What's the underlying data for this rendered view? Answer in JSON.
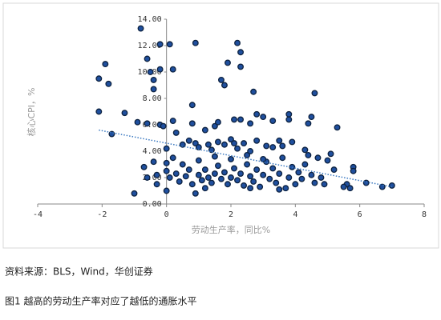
{
  "chart_data": {
    "type": "scatter",
    "y_label": "核心CPI，%",
    "x_label": "劳动生产率，同比%",
    "source": "资料来源：BLS，Wind，华创证券",
    "caption": "图1  越高的劳动生产率对应了越低的通胀水平",
    "color": "#1f4f9e",
    "edge_color": "#0d2240",
    "xlim": [
      -4,
      8
    ],
    "ylim": [
      0,
      14
    ],
    "xticks": [
      -4,
      -2,
      0,
      2,
      4,
      6,
      8
    ],
    "yticks": [
      {
        "value": 0,
        "label": "0.00"
      },
      {
        "value": 2,
        "label": "2.00"
      },
      {
        "value": 4,
        "label": "4.00"
      },
      {
        "value": 6,
        "label": "6.00"
      },
      {
        "value": 8,
        "label": "8.00"
      },
      {
        "value": 10,
        "label": "10.00"
      },
      {
        "value": 12,
        "label": "12.00"
      },
      {
        "value": 14,
        "label": "14.00"
      }
    ],
    "trendline": {
      "color": "#3a78c0",
      "x": [
        -2.1,
        7.0
      ],
      "y": [
        5.6,
        1.3
      ]
    },
    "x": [
      -0.8,
      -0.2,
      0.1,
      0.9,
      2.2,
      2.3,
      1.9,
      2.3,
      -0.6,
      -1.9,
      -0.5,
      -0.2,
      0.2,
      -0.4,
      -2.1,
      -1.8,
      1.7,
      1.8,
      -0.4,
      2.7,
      4.6,
      0.8,
      -2.1,
      -1.3,
      -0.9,
      -0.6,
      -0.2,
      -0.1,
      0.2,
      0.3,
      0.8,
      1.2,
      1.5,
      1.6,
      2.1,
      2.3,
      2.6,
      2.8,
      3.0,
      3.3,
      3.8,
      3.8,
      4.4,
      4.5,
      5.3,
      -1.7,
      0.0,
      0.5,
      0.7,
      0.9,
      1.0,
      1.3,
      1.4,
      1.6,
      1.8,
      2.0,
      2.1,
      2.2,
      2.4,
      2.6,
      2.8,
      3.1,
      3.3,
      3.5,
      3.6,
      3.9,
      4.3,
      4.4,
      4.7,
      5.0,
      5.1,
      5.8,
      5.8,
      5.6,
      5.5,
      5.7,
      6.2,
      6.7,
      7.0,
      -1.0,
      -0.3,
      0.0,
      0.9,
      0.0,
      0.0,
      -0.4,
      -0.7,
      -0.6,
      -0.3,
      0.1,
      0.3,
      0.4,
      0.6,
      0.7,
      0.8,
      1.0,
      1.1,
      1.2,
      1.3,
      1.4,
      1.5,
      1.6,
      1.7,
      1.8,
      1.9,
      2.0,
      2.1,
      2.2,
      2.3,
      2.4,
      2.5,
      2.6,
      2.7,
      2.8,
      2.9,
      3.0,
      3.1,
      3.2,
      3.3,
      3.4,
      3.5,
      3.6,
      3.7,
      3.8,
      3.9,
      4.0,
      4.1,
      4.2,
      4.3,
      4.5,
      4.6,
      4.8,
      1.0,
      1.5,
      2.0,
      2.5,
      3.0,
      0.5,
      0.2,
      4.9,
      5.2,
      1.2,
      2.6,
      3.5
    ],
    "y": [
      13.3,
      12.1,
      12.1,
      12.2,
      12.2,
      11.5,
      10.7,
      10.4,
      11.0,
      10.6,
      10.0,
      10.2,
      10.2,
      9.4,
      9.5,
      9.1,
      9.4,
      9.0,
      8.7,
      8.5,
      8.4,
      7.5,
      7.0,
      6.9,
      6.2,
      6.1,
      6.0,
      5.9,
      6.3,
      5.4,
      6.1,
      5.6,
      5.9,
      6.2,
      6.4,
      6.4,
      6.1,
      6.8,
      6.6,
      6.3,
      6.8,
      6.4,
      6.1,
      6.6,
      5.8,
      5.3,
      4.2,
      4.5,
      4.8,
      4.6,
      4.3,
      4.5,
      4.1,
      4.7,
      4.5,
      4.9,
      4.6,
      4.2,
      4.6,
      4.0,
      4.8,
      4.4,
      4.3,
      4.8,
      4.4,
      4.7,
      4.1,
      3.7,
      3.5,
      3.3,
      3.8,
      2.8,
      2.5,
      1.5,
      1.3,
      1.2,
      1.6,
      1.3,
      1.4,
      0.8,
      1.5,
      1.0,
      0.8,
      2.5,
      3.1,
      3.2,
      2.8,
      2.0,
      2.2,
      2.0,
      2.3,
      1.7,
      2.1,
      2.6,
      1.5,
      2.2,
      1.8,
      2.6,
      2.0,
      1.6,
      2.3,
      2.9,
      1.9,
      2.4,
      1.5,
      2.0,
      2.7,
      1.8,
      2.3,
      1.4,
      3.0,
      2.1,
      1.7,
      2.6,
      1.3,
      2.2,
      3.2,
      1.9,
      2.7,
      1.6,
      2.3,
      3.5,
      1.2,
      2.0,
      2.8,
      1.5,
      2.4,
      1.9,
      3.0,
      2.2,
      1.6,
      2.0,
      3.3,
      3.6,
      3.4,
      3.7,
      3.4,
      3.0,
      3.5,
      1.5,
      2.6,
      1.2,
      1.2,
      1.1
    ]
  }
}
